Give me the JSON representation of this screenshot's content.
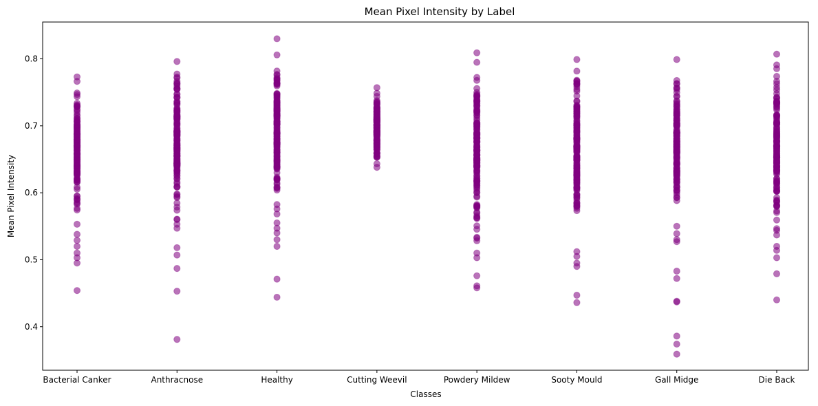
{
  "chart_data": {
    "type": "scatter",
    "title": "Mean Pixel Intensity by Label",
    "xlabel": "Classes",
    "ylabel": "Mean Pixel Intensity",
    "ylim": [
      0.335,
      0.855
    ],
    "grid": false,
    "y_ticks": [
      "0.4",
      "0.5",
      "0.6",
      "0.7",
      "0.8"
    ],
    "y_tick_values": [
      0.4,
      0.5,
      0.6,
      0.7,
      0.8
    ],
    "categories": [
      "Bacterial Canker",
      "Anthracnose",
      "Healthy",
      "Cutting Weevil",
      "Powdery Mildew",
      "Sooty Mould",
      "Gall Midge",
      "Die Back"
    ],
    "marker_color": "#800080",
    "marker_alpha": 0.55,
    "series": [
      {
        "category": "Bacterial Canker",
        "range": [
          0.553,
          0.773
        ],
        "outliers": [
          0.454,
          0.495,
          0.503,
          0.51,
          0.52,
          0.529,
          0.538
        ]
      },
      {
        "category": "Anthracnose",
        "range": [
          0.56,
          0.796
        ],
        "outliers": [
          0.381,
          0.453,
          0.487,
          0.507,
          0.518,
          0.547,
          0.553
        ]
      },
      {
        "category": "Healthy",
        "range": [
          0.555,
          0.83
        ],
        "outliers": [
          0.444,
          0.471,
          0.52,
          0.53,
          0.54,
          0.547
        ]
      },
      {
        "category": "Cutting Weevil",
        "range": [
          0.638,
          0.757
        ],
        "outliers": []
      },
      {
        "category": "Powdery Mildew",
        "range": [
          0.51,
          0.809
        ],
        "outliers": [
          0.458,
          0.461,
          0.476,
          0.503
        ]
      },
      {
        "category": "Sooty Mould",
        "range": [
          0.512,
          0.799
        ],
        "outliers": [
          0.436,
          0.447,
          0.49,
          0.495,
          0.505
        ]
      },
      {
        "category": "Gall Midge",
        "range": [
          0.55,
          0.799
        ],
        "outliers": [
          0.359,
          0.374,
          0.386,
          0.437,
          0.438,
          0.472,
          0.483,
          0.527,
          0.53,
          0.539
        ]
      },
      {
        "category": "Die Back",
        "range": [
          0.52,
          0.807
        ],
        "outliers": [
          0.44,
          0.479,
          0.503,
          0.514
        ]
      }
    ]
  }
}
